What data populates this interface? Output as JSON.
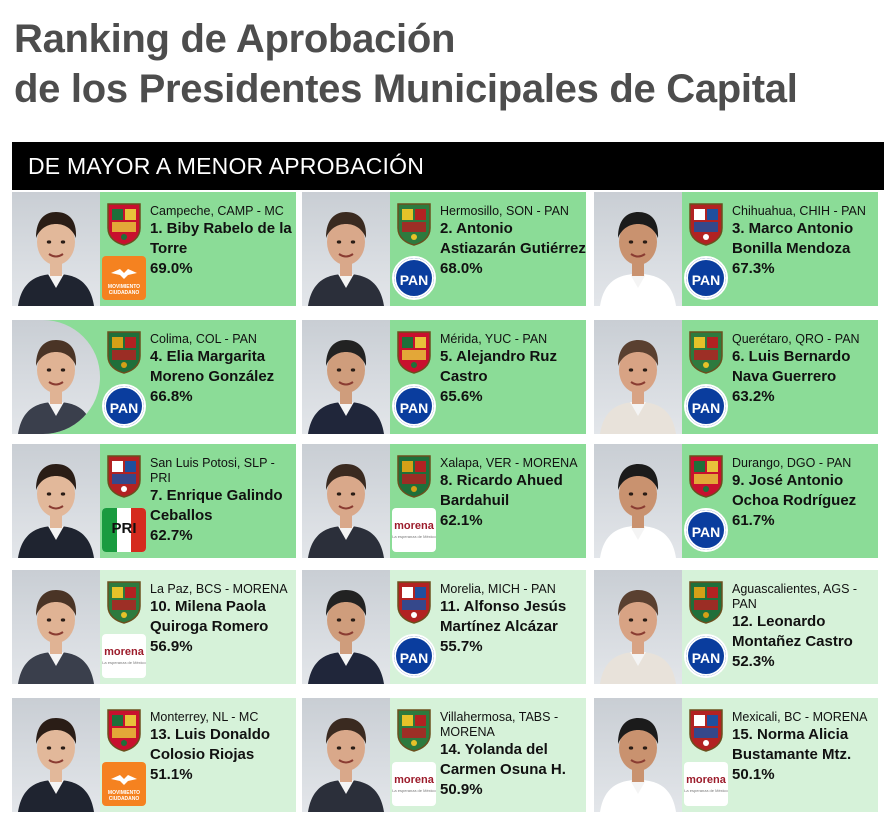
{
  "title": {
    "line1": "Ranking de Aprobación",
    "line2": "de los Presidentes Municipales de Capital"
  },
  "banner": "DE MAYOR A MENOR APROBACIÓN",
  "colors": {
    "strong": "#8bdc97",
    "light": "#d6f2d9",
    "banner": "#000000"
  },
  "mayors": [
    {
      "location": "Campeche, CAMP - MC",
      "name": "1. Biby Rabelo de la Torre",
      "approval": "69.0%",
      "party": "mc",
      "party_label": "MOVIMIENTO CIUDADANO",
      "tier": "strong"
    },
    {
      "location": "Hermosillo, SON - PAN",
      "name": "2. Antonio Astiazarán Gutiérrez",
      "approval": "68.0%",
      "party": "pan",
      "party_label": "PAN",
      "tier": "strong"
    },
    {
      "location": "Chihuahua, CHIH - PAN",
      "name": "3. Marco Antonio Bonilla Mendoza",
      "approval": "67.3%",
      "party": "pan",
      "party_label": "PAN",
      "tier": "strong"
    },
    {
      "location": "Colima, COL - PAN",
      "name": "4. Elia Margarita Moreno González",
      "approval": "66.8%",
      "party": "pan",
      "party_label": "PAN",
      "tier": "strong"
    },
    {
      "location": "Mérida, YUC - PAN",
      "name": "5. Alejandro Ruz Castro",
      "approval": "65.6%",
      "party": "pan",
      "party_label": "PAN",
      "tier": "strong"
    },
    {
      "location": "Querétaro, QRO - PAN",
      "name": "6. Luis Bernardo Nava Guerrero",
      "approval": "63.2%",
      "party": "pan",
      "party_label": "PAN",
      "tier": "strong"
    },
    {
      "location": "San Luis Potosi, SLP - PRI",
      "name": "7. Enrique Galindo Ceballos",
      "approval": "62.7%",
      "party": "pri",
      "party_label": "PRI",
      "tier": "strong"
    },
    {
      "location": "Xalapa, VER - MORENA",
      "name": "8. Ricardo Ahued Bardahuil",
      "approval": "62.1%",
      "party": "morena",
      "party_label": "morena",
      "tier": "strong"
    },
    {
      "location": "Durango, DGO - PAN",
      "name": "9. José Antonio Ochoa Rodríguez",
      "approval": "61.7%",
      "party": "pan",
      "party_label": "PAN",
      "tier": "strong"
    },
    {
      "location": "La Paz, BCS - MORENA",
      "name": "10. Milena Paola Quiroga Romero",
      "approval": "56.9%",
      "party": "morena",
      "party_label": "morena",
      "tier": "light"
    },
    {
      "location": "Morelia, MICH - PAN",
      "name": "11. Alfonso Jesús Martínez Alcázar",
      "approval": "55.7%",
      "party": "pan",
      "party_label": "PAN",
      "tier": "light"
    },
    {
      "location": "Aguascalientes, AGS - PAN",
      "name": "12. Leonardo Montañez Castro",
      "approval": "52.3%",
      "party": "pan",
      "party_label": "PAN",
      "tier": "light"
    },
    {
      "location": "Monterrey, NL - MC",
      "name": "13. Luis Donaldo Colosio Riojas",
      "approval": "51.1%",
      "party": "mc",
      "party_label": "MOVIMIENTO CIUDADANO",
      "tier": "light"
    },
    {
      "location": "Villahermosa, TABS - MORENA",
      "name": "14. Yolanda del Carmen Osuna H.",
      "approval": "50.9%",
      "party": "morena",
      "party_label": "morena",
      "tier": "light"
    },
    {
      "location": "Mexicali, BC - MORENA",
      "name": "15. Norma Alicia Bustamante Mtz.",
      "approval": "50.1%",
      "party": "morena",
      "party_label": "morena",
      "tier": "light"
    }
  ],
  "morena_slogan": "La esperanza de México"
}
